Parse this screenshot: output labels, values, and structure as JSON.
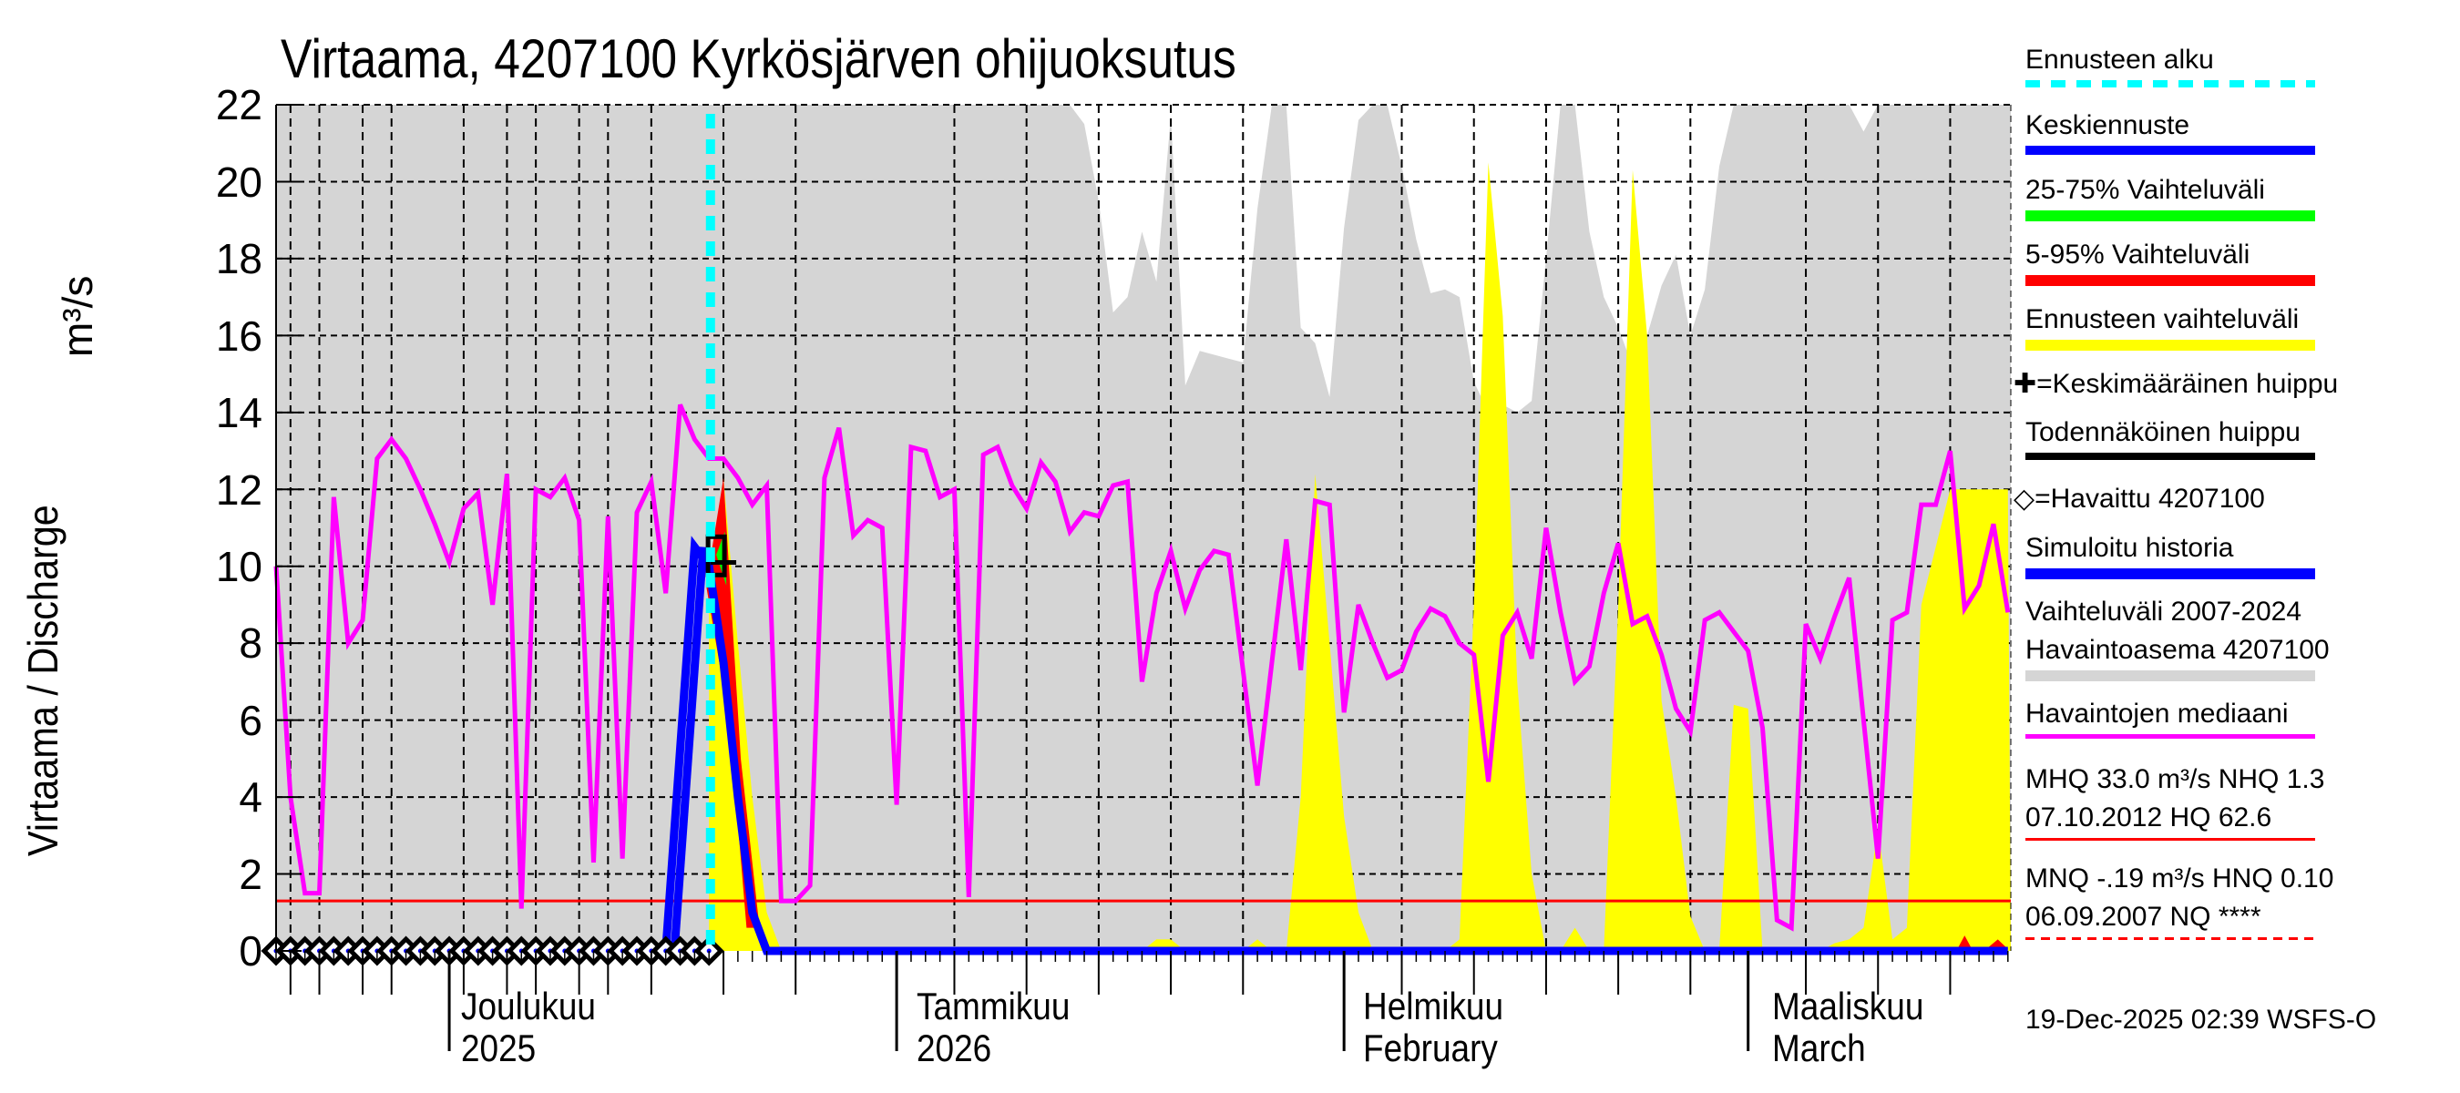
{
  "title": "Virtaama, 4207100 Kyrkösjärven ohijuoksutus",
  "y_axis": {
    "label": "Virtaama / Discharge",
    "unit": "m³/s",
    "ticks": [
      "0",
      "2",
      "4",
      "6",
      "8",
      "10",
      "12",
      "14",
      "16",
      "18",
      "20",
      "22"
    ]
  },
  "x_axis": {
    "months": [
      {
        "line1": "Joulukuu",
        "line2": "2025"
      },
      {
        "line1": "Tammikuu",
        "line2": "2026"
      },
      {
        "line1": "Helmikuu",
        "line2": "February"
      },
      {
        "line1": "Maaliskuu",
        "line2": "March"
      }
    ]
  },
  "legend": {
    "items": [
      {
        "label": "Ennusteen alku",
        "color": "#00ffff",
        "style": "dashed"
      },
      {
        "label": "Keskiennuste",
        "color": "#0000ff",
        "style": "solid"
      },
      {
        "label": "25-75% Vaihteluväli",
        "color": "#00ff00",
        "style": "solid"
      },
      {
        "label": "5-95% Vaihteluväli",
        "color": "#ff0000",
        "style": "solid"
      },
      {
        "label": "Ennusteen vaihteluväli",
        "color": "#ffff00",
        "style": "solid"
      },
      {
        "label": "✚=Keskimääräinen huippu",
        "color": null,
        "style": "marker"
      },
      {
        "label": "Todennäköinen huippu",
        "color": "#000000",
        "style": "solid"
      },
      {
        "label": "◇=Havaittu 4207100",
        "color": null,
        "style": "marker"
      },
      {
        "label": "Simuloitu historia",
        "color": "#0000ff",
        "style": "solid"
      },
      {
        "label": "Vaihteluväli 2007-2024",
        "label2": "Havaintoasema 4207100",
        "color": "#d5d5d5",
        "style": "solid"
      },
      {
        "label": "Havaintojen mediaani",
        "color": "#ff00ff",
        "style": "solid"
      },
      {
        "label": "MHQ 33.0 m³/s NHQ  1.3",
        "label2": "07.10.2012 HQ 62.6",
        "color": "#ff0000",
        "style": "thin"
      },
      {
        "label": "MNQ -.19 m³/s HNQ 0.10",
        "label2": "06.09.2007 NQ ****",
        "color": "#ff0000",
        "style": "thin-dashed"
      }
    ]
  },
  "footer": "19-Dec-2025 02:39 WSFS-O",
  "chart_data": {
    "type": "area",
    "title": "Virtaama, 4207100 Kyrkösjärven ohijuoksutus",
    "xlabel": "",
    "ylabel": "Virtaama / Discharge m³/s",
    "ylim": [
      0,
      22
    ],
    "x_range": [
      "2025-11-19",
      "2026-03-19"
    ],
    "grid": true,
    "forecast_start": "2025-12-19",
    "nhq_line": 1.3,
    "series": [
      {
        "name": "Havaintojen mediaani",
        "color": "#ff00ff",
        "x_day_offset": [
          0,
          1,
          2,
          3,
          4,
          5,
          6,
          7,
          8,
          9,
          10,
          11,
          12,
          13,
          14,
          15,
          16,
          17,
          18,
          19,
          20,
          21,
          22,
          23,
          24,
          25,
          26,
          27,
          28,
          29,
          30,
          31,
          32,
          33,
          34,
          35,
          36,
          37,
          38,
          39,
          40,
          41,
          42,
          43,
          44,
          45,
          46,
          47,
          48,
          49,
          50,
          51,
          52,
          53,
          54,
          55,
          56,
          57,
          58,
          59,
          60,
          61,
          62,
          63,
          64,
          65,
          66,
          67,
          68,
          69,
          70,
          71,
          72,
          73,
          74,
          75,
          76,
          77,
          78,
          79,
          80,
          81,
          82,
          83,
          84,
          85,
          86,
          87,
          88,
          89,
          90,
          91,
          92,
          93,
          94,
          95,
          96,
          97,
          98,
          99,
          100,
          101,
          102,
          103,
          104,
          105,
          106,
          107,
          108,
          109,
          110,
          111,
          112,
          113,
          114,
          115,
          116,
          117,
          118,
          119,
          120
        ],
        "values": [
          10.0,
          4.0,
          1.5,
          1.5,
          11.8,
          8.0,
          8.6,
          12.8,
          13.3,
          12.8,
          12.0,
          11.1,
          10.1,
          11.5,
          11.9,
          9.0,
          12.4,
          1.1,
          12.0,
          11.8,
          12.3,
          11.2,
          2.3,
          11.3,
          2.4,
          11.4,
          12.2,
          9.3,
          14.2,
          13.3,
          12.8,
          12.8,
          12.3,
          11.6,
          12.1,
          1.3,
          1.3,
          1.7,
          12.3,
          13.6,
          10.8,
          11.2,
          11.0,
          3.8,
          13.1,
          13.0,
          11.8,
          12.0,
          1.4,
          12.9,
          13.1,
          12.1,
          11.5,
          12.7,
          12.2,
          10.9,
          11.4,
          11.3,
          12.1,
          12.2,
          7.0,
          9.3,
          10.4,
          8.9,
          9.9,
          10.4,
          10.3,
          7.3,
          4.3,
          7.5,
          10.7,
          7.3,
          11.7,
          11.6,
          6.2,
          9.0,
          8.0,
          7.1,
          7.3,
          8.3,
          8.9,
          8.7,
          8.0,
          7.7,
          4.4,
          8.2,
          8.8,
          7.6,
          11.0,
          8.8,
          7.0,
          7.4,
          9.3,
          10.6,
          8.5,
          8.7,
          7.7,
          6.3,
          5.7,
          8.6,
          8.8,
          8.3,
          7.8,
          5.8,
          0.8,
          0.6,
          8.5,
          7.6,
          8.7,
          9.7,
          6.0,
          2.4,
          8.6,
          8.8,
          11.6,
          11.6,
          13.0,
          8.9,
          9.5,
          11.1,
          8.8
        ]
      },
      {
        "name": "Vaihteluväli 2007-2024 (upper bound)",
        "color": "#d5d5d5",
        "x_day_offset": [
          0,
          55,
          56,
          57,
          58,
          59,
          60,
          61,
          62,
          63,
          64,
          65,
          66,
          67,
          68,
          69,
          70,
          71,
          72,
          73,
          74,
          75,
          76,
          77,
          78,
          79,
          80,
          81,
          82,
          83,
          84,
          85,
          86,
          87,
          88,
          89,
          90,
          91,
          92,
          93,
          94,
          95,
          96,
          97,
          98,
          99,
          100,
          101,
          102,
          103,
          104,
          105,
          106,
          107,
          108,
          109,
          110,
          111,
          112,
          113,
          114,
          115,
          116,
          117,
          118,
          119,
          120
        ],
        "values": [
          22,
          22,
          21.5,
          19.5,
          16.6,
          17.0,
          18.7,
          17.4,
          21.7,
          14.7,
          15.6,
          15.5,
          15.4,
          15.3,
          19.3,
          22,
          22,
          16.2,
          15.8,
          14.4,
          18.8,
          21.6,
          22,
          22,
          20.4,
          18.5,
          17.1,
          17.2,
          17.0,
          14.8,
          14.0,
          14.2,
          14.0,
          14.3,
          18.0,
          22,
          22,
          18.7,
          17.0,
          16.2,
          15.2,
          16.0,
          17.3,
          18.1,
          16.0,
          17.2,
          20.4,
          22,
          22,
          22,
          22,
          22,
          22,
          22,
          22,
          22,
          21.3,
          22,
          22,
          22,
          22,
          22,
          22,
          22,
          22,
          22,
          22
        ]
      },
      {
        "name": "Ennusteen vaihteluväli",
        "color": "#ffff00",
        "x_day_offset": [
          30,
          31,
          32,
          33,
          34,
          35,
          60,
          61,
          62,
          63,
          67,
          68,
          69,
          70,
          71,
          72,
          73,
          74,
          75,
          76,
          77,
          78,
          79,
          80,
          81,
          82,
          83,
          84,
          85,
          86,
          87,
          88,
          89,
          90,
          91,
          92,
          93,
          94,
          95,
          96,
          97,
          98,
          99,
          100,
          101,
          102,
          103,
          104,
          105,
          106,
          107,
          108,
          109,
          110,
          111,
          112,
          113,
          114,
          115,
          116,
          117,
          118,
          119,
          120
        ],
        "values": [
          9.0,
          12.3,
          8.0,
          4.0,
          1.0,
          0,
          0,
          0.3,
          0.3,
          0,
          0,
          0.3,
          0,
          0,
          4.0,
          12.4,
          8.0,
          3.5,
          1.0,
          0,
          0,
          0,
          0,
          0,
          0,
          0.3,
          9.0,
          20.5,
          16.5,
          7.0,
          2.0,
          0,
          0,
          0.6,
          0,
          0,
          9.0,
          20.3,
          16.0,
          6.5,
          4.0,
          0.9,
          0,
          0,
          6.4,
          6.3,
          0,
          0,
          0,
          0,
          0,
          0.2,
          0.3,
          0.6,
          3.2,
          0.3,
          0.6,
          9.0,
          10.5,
          12.0,
          12.0,
          12.0,
          12.0,
          12.0
        ]
      },
      {
        "name": "Keskiennuste",
        "color": "#0000ff",
        "x_day_offset": [
          27,
          29,
          30,
          31,
          32,
          33,
          34,
          120
        ],
        "values": [
          0,
          10.5,
          10.0,
          7.5,
          4.0,
          1.0,
          0,
          0
        ]
      },
      {
        "name": "Havaittu 4207100",
        "color": "#000000",
        "marker": "diamond",
        "x_day_offset": [
          0,
          1,
          2,
          3,
          4,
          5,
          6,
          7,
          8,
          9,
          10,
          11,
          12,
          13,
          14,
          15,
          16,
          17,
          18,
          19,
          20,
          21,
          22,
          23,
          24,
          25,
          26,
          27,
          28,
          29,
          30
        ],
        "values": [
          0,
          0,
          0,
          0,
          0,
          0,
          0,
          0,
          0,
          0,
          0,
          0,
          0,
          0,
          0,
          0,
          0,
          0,
          0,
          0,
          0,
          0,
          0,
          0,
          0,
          0,
          0,
          0,
          0,
          0,
          0
        ]
      },
      {
        "name": "Keskimääräinen huippu",
        "marker": "plus",
        "x_day_offset": [
          31
        ],
        "values": [
          10.1
        ]
      },
      {
        "name": "Todennäköinen huippu",
        "marker": "box",
        "x_day_offset": [
          30.5
        ],
        "values": [
          10.2
        ]
      }
    ]
  }
}
